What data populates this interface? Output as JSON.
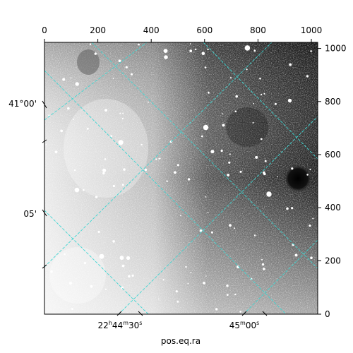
{
  "chart_data": {
    "type": "heatmap",
    "title": "",
    "xlabel": "pos.eq.ra",
    "ylabel": "",
    "pixel_axes": {
      "x_range": [
        0,
        1024
      ],
      "y_range": [
        0,
        1024
      ],
      "top_ticks": [
        0,
        200,
        400,
        600,
        800,
        1000
      ],
      "right_ticks": [
        0,
        200,
        400,
        600,
        800,
        1000
      ]
    },
    "world_axes": {
      "ra_ticks": [
        {
          "h": "22",
          "m": "44",
          "s": "30"
        },
        {
          "h": "",
          "m": "45",
          "s": "00"
        }
      ],
      "dec_ticks": [
        "41°00'",
        "05'"
      ]
    },
    "colormap": "gray",
    "grid": true,
    "grid_color": "#3ed6d2",
    "image_description_colors": {
      "dark": "#000000",
      "light": "#ffffff"
    }
  }
}
